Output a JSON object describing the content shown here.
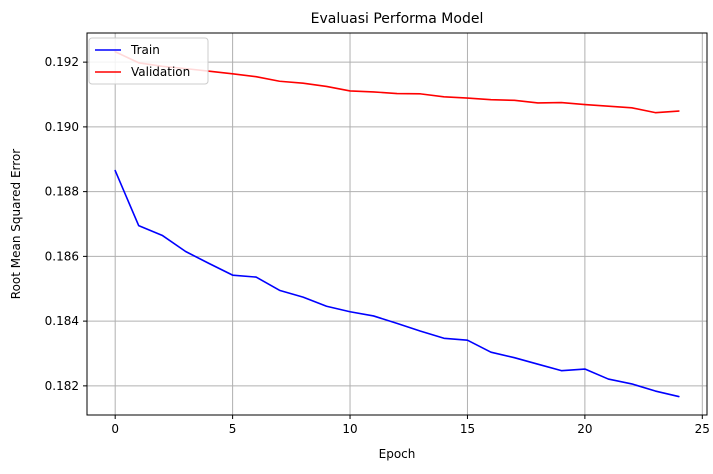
{
  "chart_data": {
    "type": "line",
    "title": "Evaluasi Performa Model",
    "xlabel": "Epoch",
    "ylabel": "Root Mean Squared Error",
    "xlim": [
      -1.2,
      25.2
    ],
    "ylim": [
      0.1811,
      0.1929
    ],
    "xticks": [
      0,
      5,
      10,
      15,
      20,
      25
    ],
    "xtick_labels": [
      "0",
      "5",
      "10",
      "15",
      "20",
      "25"
    ],
    "yticks": [
      0.182,
      0.184,
      0.186,
      0.188,
      0.19,
      0.192
    ],
    "ytick_labels": [
      "0.182",
      "0.184",
      "0.186",
      "0.188",
      "0.190",
      "0.192"
    ],
    "grid": true,
    "legend_position": "top-left",
    "x": [
      0,
      1,
      2,
      3,
      4,
      5,
      6,
      7,
      8,
      9,
      10,
      11,
      12,
      13,
      14,
      15,
      16,
      17,
      18,
      19,
      20,
      21,
      22,
      23,
      24
    ],
    "series": [
      {
        "name": "Train",
        "color": "#0000ff",
        "values": [
          0.18865,
          0.18695,
          0.18665,
          0.18615,
          0.18578,
          0.18542,
          0.18536,
          0.18495,
          0.18474,
          0.18446,
          0.18429,
          0.18416,
          0.18393,
          0.18369,
          0.18347,
          0.18341,
          0.18304,
          0.18287,
          0.18267,
          0.18247,
          0.18252,
          0.18221,
          0.18206,
          0.18184,
          0.18167
        ]
      },
      {
        "name": "Validation",
        "color": "#ff0000",
        "values": [
          0.19232,
          0.19198,
          0.19187,
          0.1918,
          0.19172,
          0.19164,
          0.19155,
          0.19141,
          0.19135,
          0.19125,
          0.19111,
          0.19108,
          0.19103,
          0.19102,
          0.19093,
          0.19089,
          0.19084,
          0.19082,
          0.19074,
          0.19075,
          0.19069,
          0.19064,
          0.19059,
          0.19044,
          0.19049
        ]
      }
    ]
  }
}
